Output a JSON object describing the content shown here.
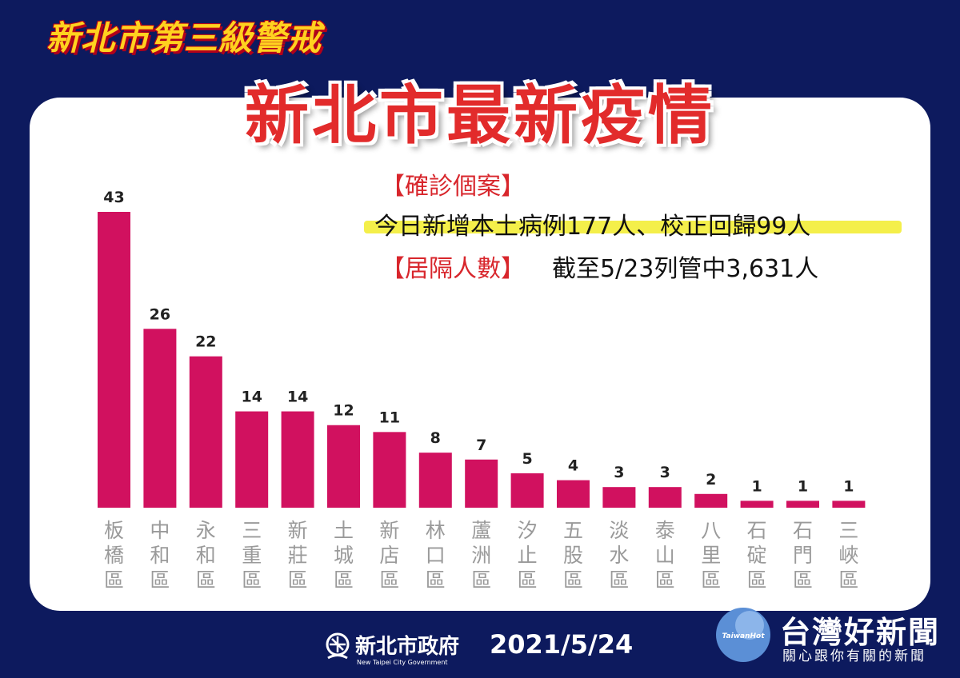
{
  "alert_title": "新北市第三級警戒",
  "main_title": "新北市最新疫情",
  "confirmed_label": "【確診個案】",
  "confirmed_text": "今日新增本土病例177人、校正回歸99人",
  "isolation_label": "【居隔人數】",
  "isolation_text": "截至5/23列管中3,631人",
  "footer": {
    "org_name": "新北市政府",
    "org_name_en": "New Taipei City Government",
    "date": "2021/5/24"
  },
  "watermark": {
    "logo_text": "TaiwanHot",
    "name": "台灣好新聞",
    "subtitle": "關心跟你有關的新聞"
  },
  "colors": {
    "background": "#0d1a5e",
    "bar": "#d1115f",
    "title_red": "#e22b2b",
    "alert_yellow": "#ffd21f",
    "highlight": "#f4ef4a"
  },
  "chart_data": {
    "type": "bar",
    "categories": [
      "板橋區",
      "中和區",
      "永和區",
      "三重區",
      "新莊區",
      "土城區",
      "新店區",
      "林口區",
      "蘆洲區",
      "汐止區",
      "五股區",
      "淡水區",
      "泰山區",
      "八里區",
      "石碇區",
      "石門區",
      "三峽區"
    ],
    "values": [
      43,
      26,
      22,
      14,
      14,
      12,
      11,
      8,
      7,
      5,
      4,
      3,
      3,
      2,
      1,
      1,
      1
    ],
    "title": "",
    "xlabel": "",
    "ylabel": "",
    "ylim": [
      0,
      43
    ],
    "grid": false,
    "legend": "none"
  }
}
